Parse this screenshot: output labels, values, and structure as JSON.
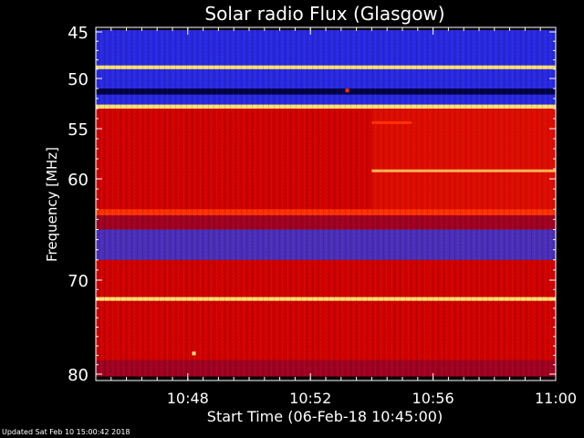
{
  "chart_data": {
    "type": "heatmap",
    "title": "Solar radio Flux (Glasgow)",
    "xlabel": "Start Time (06-Feb-18 10:45:00)",
    "ylabel": "Frequency [MHz]",
    "x_unit": "time (HH:MM)",
    "xlim": [
      "10:45",
      "11:00"
    ],
    "ylim": [
      80,
      45
    ],
    "x_ticks": [
      {
        "value": "10:48",
        "label": "10:48"
      },
      {
        "value": "10:52",
        "label": "10:52"
      },
      {
        "value": "10:56",
        "label": "10:56"
      },
      {
        "value": "11:00",
        "label": "11:00"
      }
    ],
    "y_ticks": [
      {
        "value": 45,
        "label": "45"
      },
      {
        "value": 50,
        "label": "50"
      },
      {
        "value": 55,
        "label": "55"
      },
      {
        "value": 60,
        "label": "60"
      },
      {
        "value": 70,
        "label": "70"
      },
      {
        "value": 80,
        "label": "80"
      }
    ],
    "colormap": [
      "#000033",
      "#2020c0",
      "#3030ff",
      "#b00000",
      "#e00000",
      "#ff2000",
      "#ff8000",
      "#ffff60"
    ],
    "bands": [
      {
        "f0": 44.8,
        "f1": 45.2,
        "level": "low"
      },
      {
        "f0": 45.2,
        "f1": 47.2,
        "level": "low"
      },
      {
        "f0": 47.2,
        "f1": 48.6,
        "level": "low"
      },
      {
        "f0": 48.6,
        "f1": 49.0,
        "level": "peak"
      },
      {
        "f0": 49.0,
        "f1": 51.0,
        "level": "low"
      },
      {
        "f0": 51.0,
        "f1": 51.6,
        "level": "very_low"
      },
      {
        "f0": 51.6,
        "f1": 52.6,
        "level": "low"
      },
      {
        "f0": 52.6,
        "f1": 53.0,
        "level": "peak"
      },
      {
        "f0": 53.0,
        "f1": 63.0,
        "level": "high"
      },
      {
        "f0": 63.0,
        "f1": 63.6,
        "level": "very_high"
      },
      {
        "f0": 63.6,
        "f1": 65.0,
        "level": "mid"
      },
      {
        "f0": 65.0,
        "f1": 68.0,
        "level": "low_mid"
      },
      {
        "f0": 68.0,
        "f1": 71.8,
        "level": "high"
      },
      {
        "f0": 71.8,
        "f1": 72.2,
        "level": "peak"
      },
      {
        "f0": 72.2,
        "f1": 78.5,
        "level": "high"
      },
      {
        "f0": 78.5,
        "f1": 80.2,
        "level": "mid"
      }
    ],
    "features": [
      {
        "type": "line",
        "t0": "10:54",
        "t1": "11:00",
        "f": 59.2,
        "level": "peak"
      },
      {
        "type": "line",
        "t0": "10:54",
        "t1": "10:55.3",
        "f": 54.4,
        "level": "very_high"
      },
      {
        "type": "step",
        "t0": "10:54",
        "t1": "11:00",
        "f0": 53.0,
        "f1": 63.0,
        "level": "very_high"
      },
      {
        "type": "spot",
        "t": "10:53.2",
        "f": 51.2,
        "level": "very_high"
      },
      {
        "type": "spot",
        "t": "10:48.2",
        "f": 77.8,
        "level": "peak"
      }
    ]
  },
  "footer": "Updated Sat Feb 10 15:00:42 2018"
}
